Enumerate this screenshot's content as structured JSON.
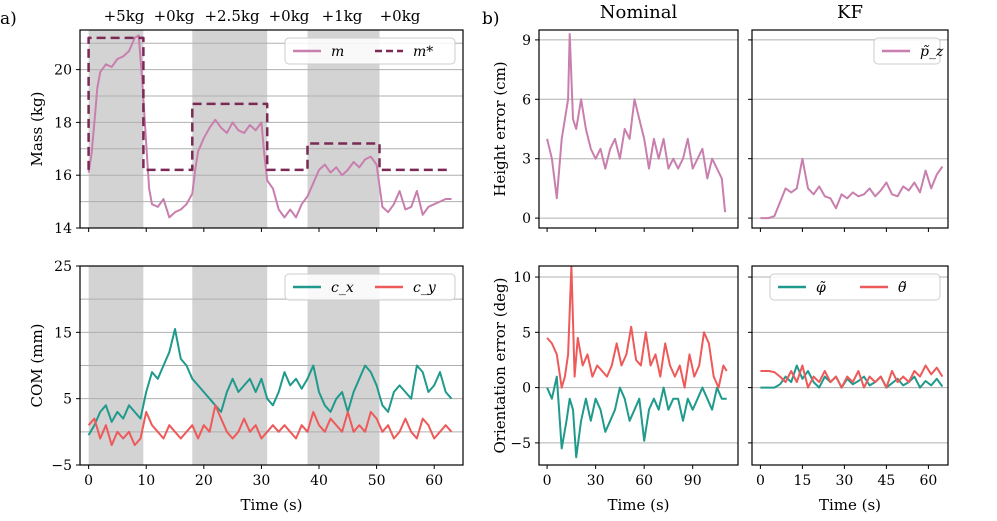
{
  "panel_labels": [
    "a)",
    "b)"
  ],
  "phase_labels": [
    "+5kg",
    "+0kg",
    "+2.5kg",
    "+0kg",
    "+1kg",
    "+0kg"
  ],
  "colors": {
    "pink": "#c97fae",
    "maroon": "#7a2a55",
    "teal": "#1f9a8c",
    "red": "#ee5a5a",
    "shade": "#d3d3d3",
    "grid": "#b0b0b0"
  },
  "chart_data": [
    {
      "id": "mass",
      "type": "line",
      "ylabel": "Mass (kg)",
      "xlabel": "",
      "xlim": [
        -1.5,
        65
      ],
      "ylim": [
        14,
        21.5
      ],
      "yticks": [
        14,
        16,
        18,
        20
      ],
      "xticks": [
        0,
        10,
        20,
        30,
        40,
        50,
        60
      ],
      "xtick_labels_visible": false,
      "shaded_intervals": [
        [
          0,
          9.5
        ],
        [
          18,
          31
        ],
        [
          38,
          50.5
        ]
      ],
      "legend": [
        "m",
        "m*"
      ],
      "series": [
        {
          "name": "m",
          "style": "solid",
          "x": [
            0,
            0.5,
            1,
            1.5,
            2,
            3,
            4,
            5,
            6,
            7,
            8,
            8.7,
            9.3,
            10,
            10.5,
            11,
            12,
            13,
            14,
            15,
            16,
            17,
            18,
            18.5,
            19,
            20,
            21,
            22,
            23,
            24,
            25,
            26,
            27,
            28,
            29,
            30,
            30.5,
            31,
            32,
            33,
            34,
            35,
            36,
            37,
            38,
            39,
            40,
            41,
            42,
            43,
            44,
            45,
            46,
            47,
            48,
            49,
            50,
            50.5,
            51,
            52,
            53,
            54,
            55,
            56,
            57,
            58,
            59,
            60,
            61,
            62,
            63
          ],
          "y": [
            16.1,
            16.8,
            18,
            19.3,
            19.9,
            20.2,
            20.1,
            20.4,
            20.5,
            20.7,
            21.2,
            21.3,
            19.6,
            17.2,
            15.5,
            14.9,
            14.8,
            15.1,
            14.4,
            14.6,
            14.7,
            14.9,
            15.3,
            16.2,
            16.9,
            17.4,
            17.8,
            18.1,
            17.8,
            17.6,
            18.0,
            17.7,
            17.6,
            17.9,
            17.7,
            18.0,
            16.8,
            15.8,
            15.5,
            14.7,
            14.4,
            14.7,
            14.4,
            14.9,
            15.2,
            15.7,
            16.2,
            16.4,
            16.1,
            16.3,
            16.0,
            16.2,
            16.5,
            16.3,
            16.6,
            16.7,
            16.4,
            15.6,
            14.8,
            14.6,
            14.9,
            15.4,
            14.7,
            14.8,
            15.4,
            14.5,
            14.8,
            14.9,
            15.0,
            15.1,
            15.1
          ]
        },
        {
          "name": "m*",
          "style": "dashed",
          "x": [
            0,
            0,
            9.5,
            9.5,
            18,
            18,
            31,
            31,
            38,
            38,
            50.5,
            50.5,
            63
          ],
          "y": [
            16.2,
            21.2,
            21.2,
            16.2,
            16.2,
            18.7,
            18.7,
            16.2,
            16.2,
            17.2,
            17.2,
            16.2,
            16.2
          ]
        }
      ]
    },
    {
      "id": "com",
      "type": "line",
      "ylabel": "COM (mm)",
      "xlabel": "Time (s)",
      "xlim": [
        -1.5,
        65
      ],
      "ylim": [
        -5,
        25
      ],
      "yticks": [
        -5,
        5,
        15,
        25
      ],
      "minor_gridlines": [
        0,
        10,
        20
      ],
      "xticks": [
        0,
        10,
        20,
        30,
        40,
        50,
        60
      ],
      "shaded_intervals": [
        [
          0,
          9.5
        ],
        [
          18,
          31
        ],
        [
          38,
          50.5
        ]
      ],
      "legend": [
        "c_x",
        "c_y"
      ],
      "series": [
        {
          "name": "c_x",
          "x": [
            0,
            1,
            2,
            3,
            4,
            5,
            6,
            7,
            8,
            9,
            10,
            11,
            12,
            13,
            14,
            15,
            16,
            17,
            18,
            19,
            20,
            21,
            22,
            23,
            24,
            25,
            26,
            27,
            28,
            29,
            30,
            31,
            32,
            33,
            34,
            35,
            36,
            37,
            38,
            39,
            40,
            41,
            42,
            43,
            44,
            45,
            46,
            47,
            48,
            49,
            50,
            51,
            52,
            53,
            54,
            55,
            56,
            57,
            58,
            59,
            60,
            61,
            62,
            63
          ],
          "y": [
            -0.5,
            1,
            3,
            4,
            1.5,
            3,
            2,
            4,
            3,
            2,
            6,
            9,
            8,
            10,
            12,
            15.5,
            11,
            10,
            8,
            7,
            6,
            5,
            4,
            3,
            6,
            8,
            6,
            7,
            8,
            6,
            8,
            5,
            4,
            6,
            9,
            7,
            8,
            6.5,
            8,
            10,
            6,
            4,
            3,
            5,
            6,
            3,
            6,
            8,
            10,
            9,
            7,
            4,
            3,
            6,
            7,
            6,
            5,
            10,
            9,
            6,
            7,
            9,
            6,
            5
          ]
        },
        {
          "name": "c_y",
          "x": [
            0,
            1,
            2,
            3,
            4,
            5,
            6,
            7,
            8,
            9,
            10,
            11,
            12,
            13,
            14,
            15,
            16,
            17,
            18,
            19,
            20,
            21,
            22,
            23,
            24,
            25,
            26,
            27,
            28,
            29,
            30,
            31,
            32,
            33,
            34,
            35,
            36,
            37,
            38,
            39,
            40,
            41,
            42,
            43,
            44,
            45,
            46,
            47,
            48,
            49,
            50,
            51,
            52,
            53,
            54,
            55,
            56,
            57,
            58,
            59,
            60,
            61,
            62,
            63
          ],
          "y": [
            1,
            2,
            -1,
            1,
            -2,
            0,
            -1,
            0,
            -2,
            -1,
            3,
            1,
            0,
            -1,
            1,
            0,
            -1,
            0,
            1,
            -1,
            1,
            0,
            4,
            2,
            0,
            -1,
            0,
            2,
            0,
            1,
            -1,
            0,
            1,
            0,
            1,
            0,
            -1,
            1,
            0,
            3,
            1,
            0,
            2,
            1,
            0,
            3,
            0,
            1,
            0,
            3,
            2,
            0,
            1,
            -1,
            0,
            2,
            0,
            -1,
            2,
            1,
            -1,
            0,
            1,
            0
          ]
        }
      ]
    },
    {
      "id": "height-nominal",
      "type": "line",
      "title": "Nominal",
      "ylabel": "Height error (cm)",
      "xlim": [
        -5,
        118
      ],
      "ylim": [
        -0.5,
        9.5
      ],
      "yticks": [
        0,
        3,
        6,
        9
      ],
      "xticks": [
        0,
        30,
        60,
        90
      ],
      "xtick_labels_visible": false,
      "series": [
        {
          "name": "p_z",
          "x": [
            0,
            3,
            6,
            9,
            11,
            13,
            14,
            16,
            18,
            21,
            24,
            27,
            30,
            33,
            36,
            39,
            42,
            45,
            48,
            51,
            54,
            57,
            60,
            63,
            66,
            69,
            72,
            75,
            78,
            81,
            84,
            87,
            90,
            93,
            96,
            99,
            102,
            105,
            108,
            110
          ],
          "y": [
            4,
            3,
            1,
            4,
            5,
            6,
            9.3,
            5,
            4.5,
            6,
            4.5,
            3.5,
            3,
            3.5,
            2.5,
            3.5,
            4,
            3,
            4.5,
            4,
            6,
            5,
            4,
            2.5,
            4,
            3,
            4,
            2.5,
            3,
            2.5,
            3,
            4,
            2.5,
            3,
            3.5,
            2,
            3,
            2.5,
            2,
            0.3
          ]
        }
      ]
    },
    {
      "id": "height-kf",
      "type": "line",
      "title": "KF",
      "ylabel": "",
      "xlim": [
        -3,
        67
      ],
      "ylim": [
        -0.5,
        9.5
      ],
      "yticks": [
        0,
        3,
        6,
        9
      ],
      "ytick_labels_visible": false,
      "xticks": [
        0,
        15,
        30,
        45,
        60
      ],
      "xtick_labels_visible": false,
      "legend": [
        "p̃_z"
      ],
      "series": [
        {
          "name": "p̃_z",
          "x": [
            0,
            3,
            5,
            7,
            9,
            11,
            13,
            15,
            17,
            19,
            21,
            23,
            25,
            27,
            29,
            31,
            33,
            35,
            37,
            39,
            41,
            43,
            45,
            47,
            49,
            51,
            53,
            55,
            57,
            59,
            61,
            63,
            65
          ],
          "y": [
            0,
            0,
            0.1,
            0.8,
            1.5,
            1.3,
            1.5,
            3,
            1.5,
            1.2,
            1.6,
            1.1,
            1,
            0.5,
            1.2,
            1,
            1.3,
            1.1,
            1.2,
            1.5,
            1.1,
            1.4,
            1.8,
            1.2,
            1.1,
            1.6,
            1.4,
            1.8,
            1.3,
            2.4,
            1.5,
            2.2,
            2.6
          ]
        }
      ]
    },
    {
      "id": "orient-nominal",
      "type": "line",
      "ylabel": "Orientation error (deg)",
      "xlabel": "Time (s)",
      "xlim": [
        -5,
        118
      ],
      "ylim": [
        -7,
        11
      ],
      "yticks": [
        -5,
        0,
        5,
        10
      ],
      "gridlines": [
        -5,
        0,
        5,
        10
      ],
      "xticks": [
        0,
        30,
        60,
        90
      ],
      "series": [
        {
          "name": "φ̃",
          "x": [
            0,
            3,
            6,
            9,
            12,
            14,
            16,
            18,
            21,
            24,
            27,
            30,
            33,
            36,
            39,
            42,
            45,
            48,
            51,
            54,
            57,
            60,
            63,
            66,
            69,
            72,
            75,
            78,
            81,
            84,
            87,
            90,
            93,
            96,
            99,
            102,
            105,
            108,
            111
          ],
          "y": [
            0,
            -1,
            1,
            -5.5,
            -3,
            -1,
            -2,
            -6.3,
            -3,
            -1,
            -3,
            -1,
            -2,
            -4,
            -3,
            -2,
            0,
            -1,
            -3,
            -2,
            -1,
            -4.8,
            -2,
            -1,
            -2,
            0,
            -2,
            -1,
            -1,
            -3,
            -1,
            -2,
            -1,
            0,
            -1,
            -2,
            0,
            -1,
            -1
          ]
        },
        {
          "name": "θ̃",
          "x": [
            0,
            3,
            6,
            9,
            11,
            13,
            15,
            17,
            19,
            22,
            25,
            28,
            31,
            34,
            37,
            40,
            43,
            46,
            49,
            52,
            55,
            58,
            61,
            64,
            67,
            70,
            73,
            76,
            79,
            82,
            85,
            88,
            91,
            94,
            97,
            100,
            103,
            106,
            109,
            111
          ],
          "y": [
            4.5,
            4,
            3,
            0,
            1,
            3,
            11,
            1,
            4.5,
            2,
            3,
            1,
            2,
            1.5,
            1,
            2,
            4,
            2,
            3,
            5.5,
            2.5,
            2,
            5,
            2,
            3,
            1,
            4,
            2,
            1,
            2,
            0,
            3,
            1,
            2,
            5,
            4,
            1,
            0,
            2,
            1.5
          ]
        }
      ]
    },
    {
      "id": "orient-kf",
      "type": "line",
      "ylabel": "",
      "xlabel": "Time (s)",
      "xlim": [
        -3,
        67
      ],
      "ylim": [
        -7,
        11
      ],
      "yticks": [
        -5,
        0,
        5,
        10
      ],
      "ytick_labels_visible": false,
      "xticks": [
        0,
        15,
        30,
        45,
        60
      ],
      "legend": [
        "φ̃",
        "θ̃"
      ],
      "series": [
        {
          "name": "φ̃",
          "x": [
            0,
            3,
            5,
            7,
            9,
            11,
            13,
            15,
            17,
            19,
            21,
            23,
            25,
            27,
            29,
            31,
            33,
            35,
            37,
            39,
            41,
            43,
            45,
            47,
            49,
            51,
            53,
            55,
            57,
            59,
            61,
            63,
            65
          ],
          "y": [
            0,
            0,
            0,
            0.3,
            1,
            0.5,
            2,
            0.8,
            1.5,
            0.5,
            0,
            1,
            0.5,
            1,
            0,
            0.8,
            0.3,
            0.6,
            1,
            0.2,
            0.5,
            1,
            0,
            0.4,
            0.8,
            0.2,
            0.5,
            1,
            0,
            0.6,
            0.2,
            0.8,
            0.1
          ]
        },
        {
          "name": "θ̃",
          "x": [
            0,
            3,
            5,
            7,
            9,
            11,
            13,
            15,
            17,
            19,
            21,
            23,
            25,
            27,
            29,
            31,
            33,
            35,
            37,
            39,
            41,
            43,
            45,
            47,
            49,
            51,
            53,
            55,
            57,
            59,
            61,
            63,
            65
          ],
          "y": [
            1.5,
            1.5,
            1.4,
            1,
            0.5,
            1.5,
            0.5,
            2,
            0,
            1,
            0.5,
            1.5,
            0.5,
            1,
            0,
            1,
            0.5,
            1.5,
            0,
            1,
            0.5,
            1,
            0,
            1.5,
            0.5,
            1,
            0.5,
            1.5,
            1,
            2,
            1.2,
            1.8,
            1
          ]
        }
      ]
    }
  ]
}
